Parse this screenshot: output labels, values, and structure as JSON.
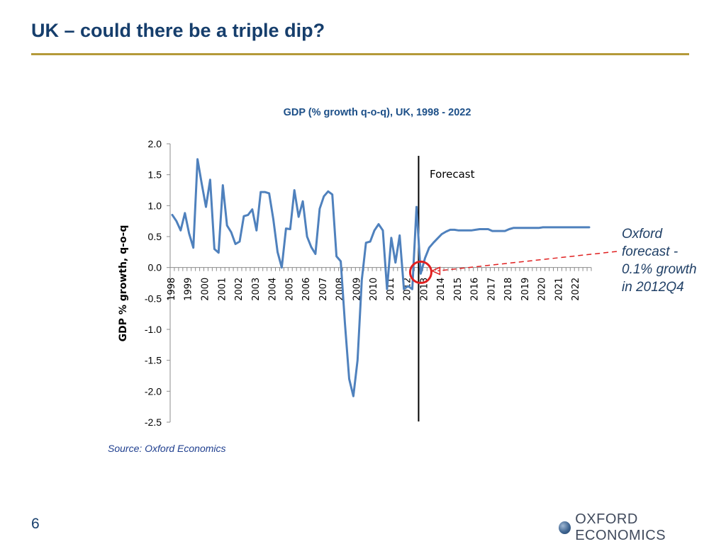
{
  "slide": {
    "title": "UK – could there be a triple dip?",
    "page_number": "6",
    "source": "Source: Oxford Economics",
    "logo_text": "OXFORD ECONOMICS",
    "annotation": [
      "Oxford",
      "forecast -",
      "0.1% growth",
      "in 2012Q4"
    ]
  },
  "chart_data": {
    "type": "line",
    "title": "GDP (% growth q-o-q), UK, 1998 - 2022",
    "ylabel": "GDP % growth, q-o-q",
    "xlabel": "",
    "ylim": [
      -2.5,
      2.0
    ],
    "yticks": [
      "2.0",
      "1.5",
      "1.0",
      "0.5",
      "0.0",
      "-0.5",
      "-1.0",
      "-1.5",
      "-2.0",
      "-2.5"
    ],
    "x_start_year": 1998,
    "x_end_year": 2022,
    "quarters_per_year": 4,
    "forecast_label": "Forecast",
    "forecast_start": "2012Q4",
    "highlight": {
      "period": "2012Q4",
      "value": -0.1
    },
    "colors": {
      "line": "#4f81bd",
      "highlight": "#e02020",
      "forecast_line": "#000000",
      "axis": "#8c8c8c"
    },
    "series": [
      {
        "values": [
          0.85,
          0.75,
          0.6,
          0.88,
          0.55,
          0.32,
          1.75,
          1.35,
          0.98,
          1.42,
          0.3,
          0.24,
          1.33,
          0.68,
          0.57,
          0.38,
          0.42,
          0.83,
          0.85,
          0.94,
          0.6,
          1.22,
          1.22,
          1.2,
          0.78,
          0.25,
          0.0,
          0.63,
          0.62,
          1.25,
          0.82,
          1.07,
          0.5,
          0.33,
          0.22,
          0.95,
          1.15,
          1.23,
          1.18,
          0.18,
          0.1,
          -0.9,
          -1.8,
          -2.08,
          -1.5,
          -0.2,
          0.4,
          0.42,
          0.6,
          0.7,
          0.6,
          -0.35,
          0.48,
          0.08,
          0.52,
          -0.35,
          -0.3,
          -0.35,
          0.98,
          -0.1,
          0.15,
          0.32,
          0.4,
          0.47,
          0.54,
          0.58,
          0.61,
          0.61,
          0.6,
          0.6,
          0.6,
          0.6,
          0.61,
          0.62,
          0.62,
          0.62,
          0.59,
          0.59,
          0.59,
          0.59,
          0.62,
          0.64,
          0.64,
          0.64,
          0.64,
          0.64,
          0.64,
          0.64,
          0.65,
          0.65,
          0.65,
          0.65,
          0.65,
          0.65,
          0.65,
          0.65,
          0.65,
          0.65,
          0.65,
          0.65
        ]
      }
    ]
  }
}
